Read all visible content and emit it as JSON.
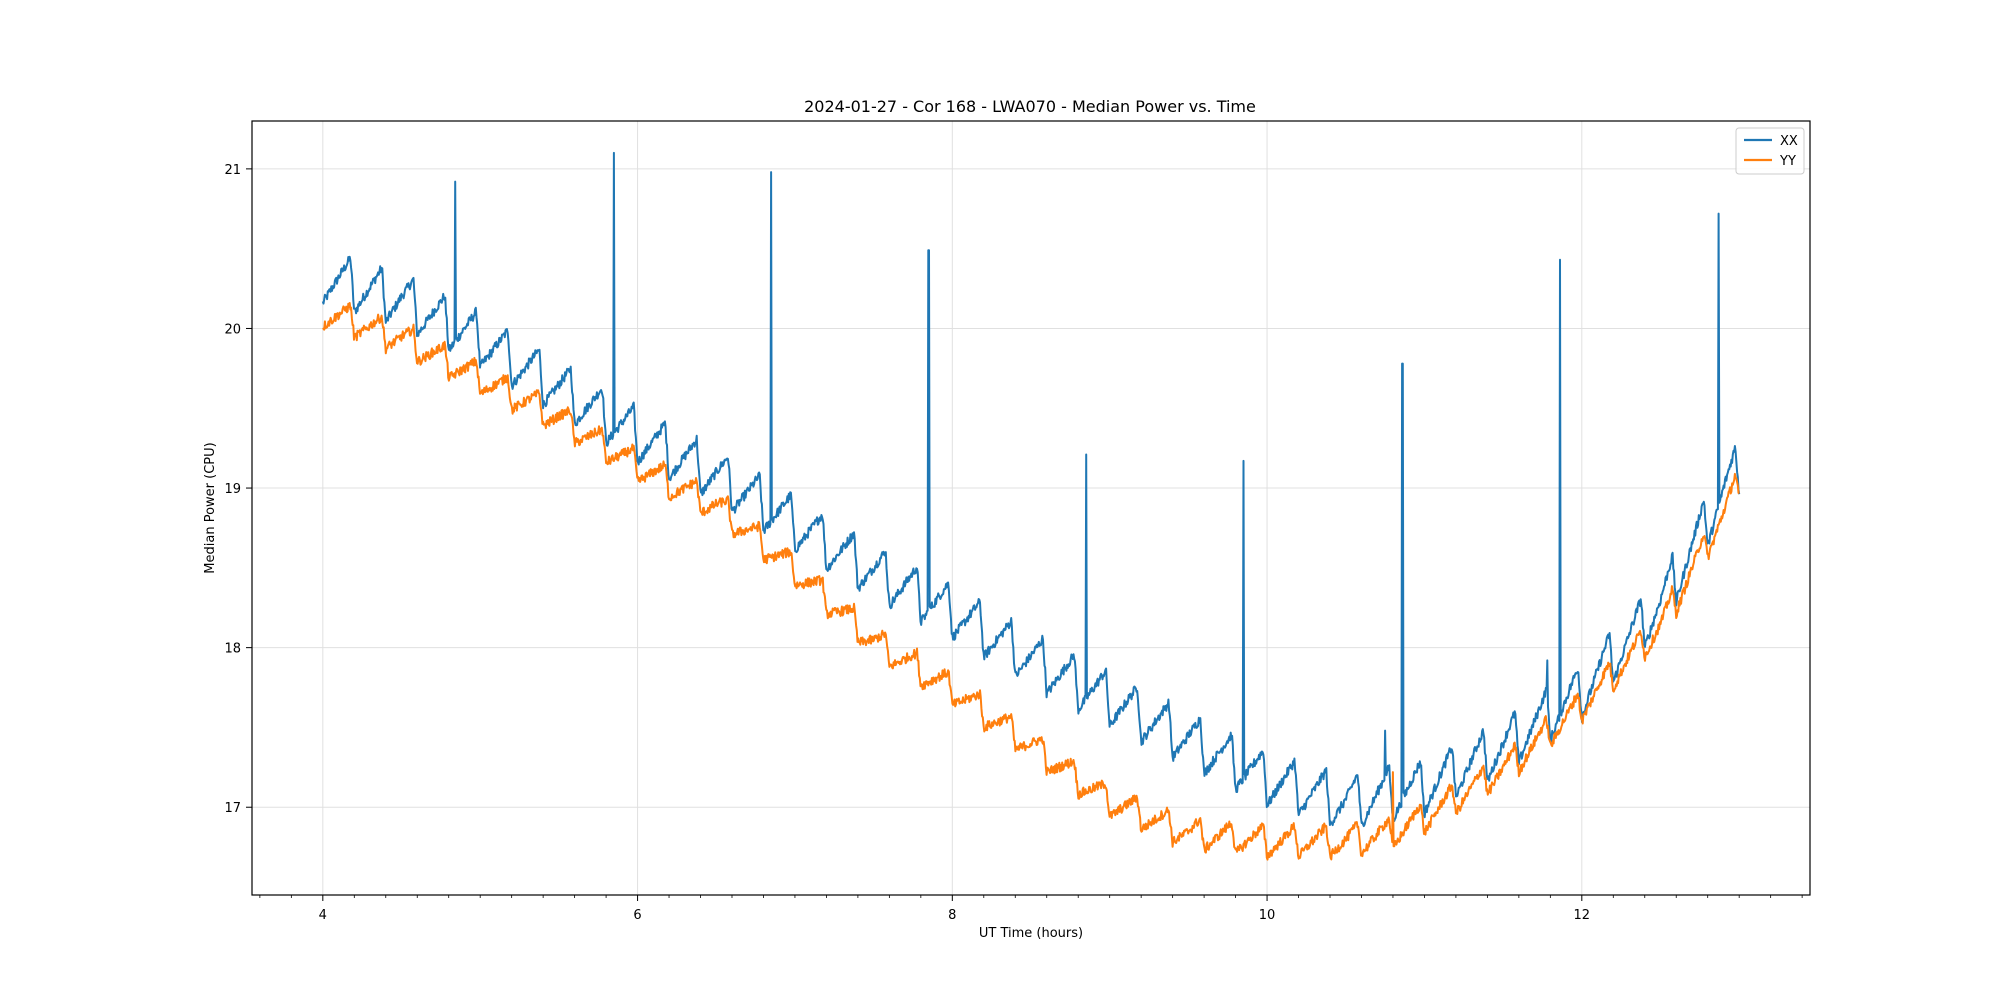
{
  "chart_data": {
    "type": "line",
    "title": "2024-01-27 - Cor 168 - LWA070 - Median Power vs. Time",
    "xlabel": "UT Time (hours)",
    "ylabel": "Median Power (CPU)",
    "xlim": [
      3.55,
      13.45
    ],
    "ylim": [
      16.45,
      21.3
    ],
    "xticks": [
      4,
      6,
      8,
      10,
      12
    ],
    "xtick_labels": [
      "4",
      "6",
      "8",
      "10",
      "12"
    ],
    "yticks": [
      17,
      18,
      19,
      20,
      21
    ],
    "ytick_labels": [
      "17",
      "18",
      "19",
      "20",
      "21"
    ],
    "grid": true,
    "legend_position": "top-right",
    "ripple_period_hours": 0.2,
    "series": [
      {
        "name": "XX",
        "color": "#1f77b4",
        "ripple_depth": 0.38,
        "x": [
          4.0,
          4.5,
          5.0,
          5.5,
          6.0,
          6.5,
          7.0,
          7.5,
          8.0,
          8.5,
          9.0,
          9.5,
          10.0,
          10.5,
          11.0,
          11.5,
          12.0,
          12.5,
          12.9,
          13.0
        ],
        "y": [
          20.35,
          20.2,
          19.95,
          19.65,
          19.35,
          19.1,
          18.8,
          18.5,
          18.25,
          17.95,
          17.7,
          17.45,
          17.2,
          17.05,
          17.15,
          17.4,
          17.75,
          18.3,
          19.0,
          19.15
        ],
        "spikes": [
          {
            "x": 4.84,
            "y": 20.92
          },
          {
            "x": 5.85,
            "y": 21.1
          },
          {
            "x": 6.85,
            "y": 20.98
          },
          {
            "x": 7.85,
            "y": 20.49
          },
          {
            "x": 8.85,
            "y": 19.21
          },
          {
            "x": 9.85,
            "y": 19.17
          },
          {
            "x": 10.75,
            "y": 17.48
          },
          {
            "x": 10.86,
            "y": 19.78
          },
          {
            "x": 11.78,
            "y": 17.92
          },
          {
            "x": 11.86,
            "y": 20.43
          },
          {
            "x": 12.87,
            "y": 20.72
          }
        ]
      },
      {
        "name": "YY",
        "color": "#ff7f0e",
        "ripple_depth": 0.22,
        "x": [
          4.0,
          4.5,
          5.0,
          5.5,
          6.0,
          6.5,
          7.0,
          7.5,
          8.0,
          8.5,
          9.0,
          9.5,
          10.0,
          10.5,
          10.8,
          11.0,
          11.5,
          12.0,
          12.5,
          12.9,
          13.0
        ],
        "y": [
          20.12,
          19.95,
          19.7,
          19.45,
          19.15,
          18.9,
          18.5,
          18.05,
          17.75,
          17.4,
          17.05,
          16.85,
          16.8,
          16.8,
          16.85,
          16.95,
          17.25,
          17.65,
          18.15,
          18.85,
          19.05
        ],
        "spikes": [
          {
            "x": 10.8,
            "y": 17.22
          }
        ]
      }
    ]
  }
}
